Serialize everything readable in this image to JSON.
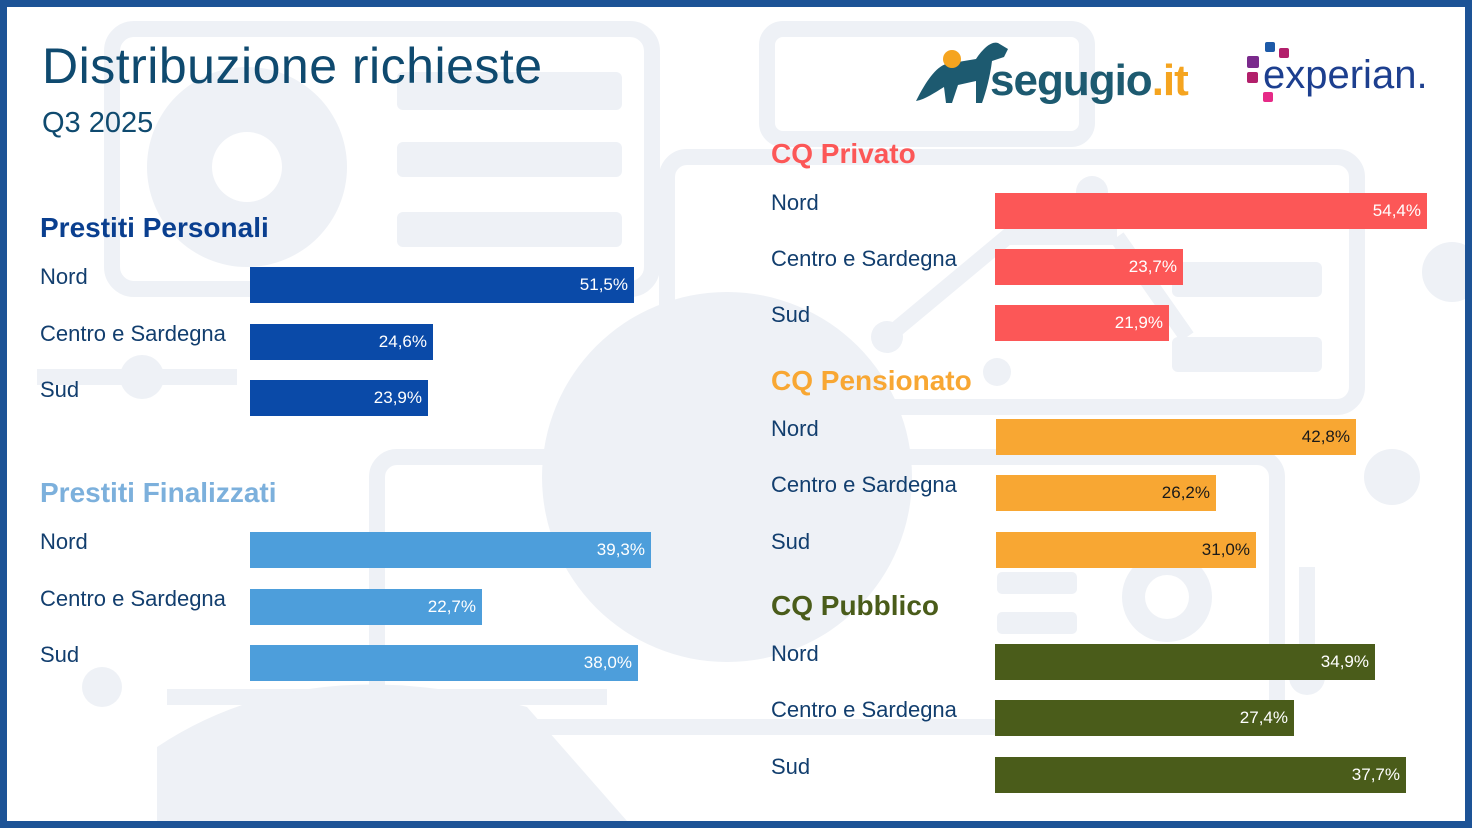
{
  "header": {
    "title": "Distribuzione richieste",
    "subtitle": "Q3 2025"
  },
  "logos": {
    "segugio": "segugio.it",
    "experian": "experian."
  },
  "chart_data": [
    {
      "type": "bar",
      "orientation": "horizontal",
      "title": "Prestiti Personali",
      "color": "#0a4aa8",
      "label_color": "#ffffff",
      "categories": [
        "Nord",
        "Centro e Sardegna",
        "Sud"
      ],
      "values": [
        51.5,
        24.6,
        23.9
      ],
      "labels": [
        "51,5%",
        "24,6%",
        "23,9%"
      ]
    },
    {
      "type": "bar",
      "orientation": "horizontal",
      "title": "Prestiti Finalizzati",
      "color": "#4d9edb",
      "title_color": "#7cb0dc",
      "label_color": "#ffffff",
      "categories": [
        "Nord",
        "Centro e Sardegna",
        "Sud"
      ],
      "values": [
        39.3,
        22.7,
        38.0
      ],
      "labels": [
        "39,3%",
        "22,7%",
        "38,0%"
      ]
    },
    {
      "type": "bar",
      "orientation": "horizontal",
      "title": "CQ Privato",
      "color": "#fc5757",
      "label_color": "#ffffff",
      "categories": [
        "Nord",
        "Centro e Sardegna",
        "Sud"
      ],
      "values": [
        54.4,
        23.7,
        21.9
      ],
      "labels": [
        "54,4%",
        "23,7%",
        "21,9%"
      ]
    },
    {
      "type": "bar",
      "orientation": "horizontal",
      "title": "CQ Pensionato",
      "color": "#f8a733",
      "label_color": "#1a1a1a",
      "categories": [
        "Nord",
        "Centro e Sardegna",
        "Sud"
      ],
      "values": [
        42.8,
        26.2,
        31.0
      ],
      "labels": [
        "42,8%",
        "26,2%",
        "31,0%"
      ]
    },
    {
      "type": "bar",
      "orientation": "horizontal",
      "title": "CQ Pubblico",
      "color": "#4a5c1a",
      "label_color": "#ffffff",
      "categories": [
        "Nord",
        "Centro e Sardegna",
        "Sud"
      ],
      "values": [
        34.9,
        27.4,
        37.7
      ],
      "labels": [
        "34,9%",
        "27,4%",
        "37,7%"
      ]
    }
  ]
}
